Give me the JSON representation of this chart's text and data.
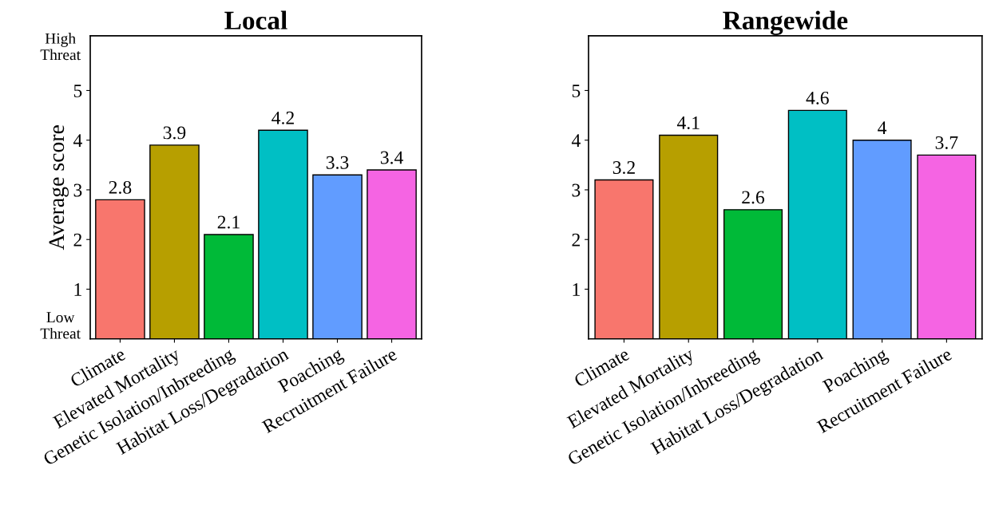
{
  "chart_data": [
    {
      "type": "bar",
      "title": "Local",
      "ylabel": "Average score",
      "categories": [
        "Climate",
        "Elevated Mortality",
        "Genetic Isolation/Inbreeding",
        "Habitat Loss/Degradation",
        "Poaching",
        "Recruitment Failure"
      ],
      "values": [
        2.8,
        3.9,
        2.1,
        4.2,
        3.3,
        3.4
      ],
      "colors": [
        "#f8766d",
        "#b79f00",
        "#00ba38",
        "#00bfc4",
        "#619cff",
        "#f564e3"
      ],
      "ylim": [
        0,
        6.1
      ],
      "yticks": [
        1,
        2,
        3,
        4,
        5
      ],
      "data_labels": true,
      "grid": false,
      "annotations": [
        "High\nThreat",
        "Low\nThreat"
      ]
    },
    {
      "type": "bar",
      "title": "Rangewide",
      "categories": [
        "Climate",
        "Elevated Mortality",
        "Genetic Isolation/Inbreeding",
        "Habitat Loss/Degradation",
        "Poaching",
        "Recruitment Failure"
      ],
      "values": [
        3.2,
        4.1,
        2.6,
        4.6,
        4,
        3.7
      ],
      "colors": [
        "#f8766d",
        "#b79f00",
        "#00ba38",
        "#00bfc4",
        "#619cff",
        "#f564e3"
      ],
      "ylim": [
        0,
        6.1
      ],
      "yticks": [
        1,
        2,
        3,
        4,
        5
      ],
      "data_labels": true,
      "grid": false
    }
  ]
}
